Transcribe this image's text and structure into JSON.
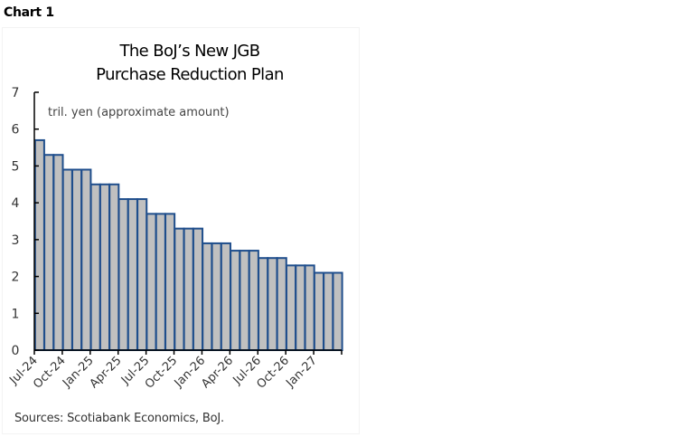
{
  "header": {
    "chart_label": "Chart 1"
  },
  "chart_data": {
    "type": "bar",
    "title": "The BoJ’s New JGB Purchase Reduction Plan",
    "title_lines": [
      "The BoJ’s New JGB",
      "Purchase Reduction Plan"
    ],
    "annotation": "tril. yen (approximate amount)",
    "xlabel": "",
    "ylabel": "",
    "ylim": [
      0,
      7
    ],
    "yticks": [
      0,
      1,
      2,
      3,
      4,
      5,
      6,
      7
    ],
    "grid": false,
    "legend": null,
    "xtick_labels": [
      "Jul-24",
      "Oct-24",
      "Jan-25",
      "Apr-25",
      "Jul-25",
      "Oct-25",
      "Jan-26",
      "Apr-26",
      "Jul-26",
      "Oct-26",
      "Jan-27"
    ],
    "categories": [
      "Jul-24",
      "Aug-24",
      "Sep-24",
      "Oct-24",
      "Nov-24",
      "Dec-24",
      "Jan-25",
      "Feb-25",
      "Mar-25",
      "Apr-25",
      "May-25",
      "Jun-25",
      "Jul-25",
      "Aug-25",
      "Sep-25",
      "Oct-25",
      "Nov-25",
      "Dec-25",
      "Jan-26",
      "Feb-26",
      "Mar-26",
      "Apr-26",
      "May-26",
      "Jun-26",
      "Jul-26",
      "Aug-26",
      "Sep-26",
      "Oct-26",
      "Nov-26",
      "Dec-26",
      "Jan-27",
      "Feb-27",
      "Mar-27"
    ],
    "values": [
      5.7,
      5.3,
      5.3,
      4.9,
      4.9,
      4.9,
      4.5,
      4.5,
      4.5,
      4.1,
      4.1,
      4.1,
      3.7,
      3.7,
      3.7,
      3.3,
      3.3,
      3.3,
      2.9,
      2.9,
      2.9,
      2.7,
      2.7,
      2.7,
      2.5,
      2.5,
      2.5,
      2.3,
      2.3,
      2.3,
      2.1,
      2.1,
      2.1
    ],
    "colors": {
      "bar_fill": "#c0c0c0",
      "bar_edge": "#1f4e8c",
      "axis": "#000000"
    }
  },
  "footer": {
    "source": "Sources: Scotiabank Economics, BoJ."
  }
}
